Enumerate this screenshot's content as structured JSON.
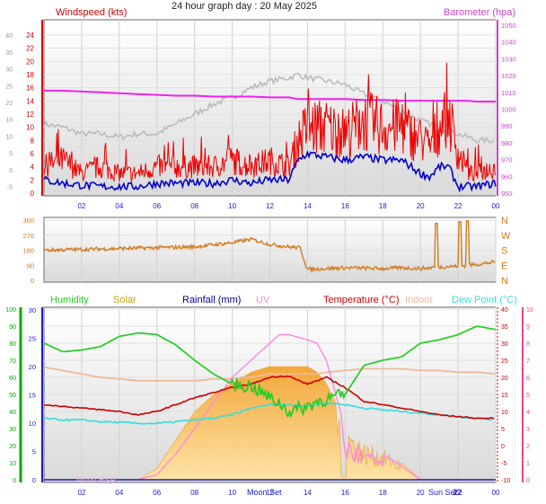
{
  "title": "24 hour graph day : 20 May 2025",
  "colors": {
    "wind": "#ee0000",
    "avgwind": "#0000cc",
    "baro": "#ee22ee",
    "gray": "#b8b8b8",
    "dir": "#d27a1c",
    "humidity": "#22cc22",
    "solar": "#f5b545",
    "rain": "#000099",
    "uv": "#ff88dd",
    "temp": "#cc0000",
    "indoor": "#f0b89a",
    "dew": "#33dddd",
    "axis_left_top": "#cc0000",
    "axis_right_top": "#cc44cc",
    "axis_humidity": "#00aa00",
    "axis_uv": "#ee4488"
  },
  "x_ticks": [
    "02",
    "04",
    "06",
    "08",
    "10",
    "12",
    "14",
    "16",
    "18",
    "20",
    "22",
    "00"
  ],
  "chart_data": [
    {
      "type": "line",
      "name_panel": "wind",
      "labels": {
        "left": "Windspeed (kts)",
        "right": "Barometer (hpa)"
      },
      "y_left_ticks": [
        "0",
        "2",
        "4",
        "6",
        "8",
        "10",
        "12",
        "14",
        "16",
        "18",
        "20",
        "22",
        "24"
      ],
      "y_left2_ticks": [
        "-5",
        "0",
        "5",
        "10",
        "15",
        "20",
        "25",
        "30",
        "35",
        "40"
      ],
      "y_right_ticks": [
        "950",
        "960",
        "970",
        "980",
        "990",
        "1000",
        "1010",
        "1020",
        "1030",
        "1040",
        "1050"
      ],
      "ylim_left": [
        0,
        25.5
      ],
      "ylim_right": [
        950,
        1050
      ],
      "x": [
        0,
        1,
        2,
        3,
        4,
        5,
        6,
        7,
        8,
        9,
        10,
        11,
        12,
        13,
        13.5,
        14,
        15,
        16,
        17,
        18,
        19,
        20,
        20.5,
        21,
        21.5,
        22,
        22.5,
        23,
        24
      ],
      "series": [
        {
          "values": [
            4,
            5,
            3,
            4,
            3,
            3,
            4,
            4,
            4,
            4,
            5,
            4,
            5,
            4,
            8,
            10,
            10,
            9,
            11,
            10,
            10,
            8,
            7,
            10,
            12,
            6,
            3,
            3,
            4
          ]
        },
        {
          "values": [
            2,
            1.5,
            1.2,
            1,
            1,
            1,
            1.5,
            1.5,
            1.5,
            1.5,
            2,
            1.5,
            2,
            2,
            5,
            6,
            5.5,
            5,
            5.5,
            5,
            5,
            3,
            2.5,
            4,
            4,
            1,
            1,
            1,
            1.5
          ]
        },
        {
          "values": [
            1011,
            1011,
            1010.5,
            1010,
            1009.5,
            1009,
            1008.5,
            1008,
            1008,
            1007.5,
            1007.5,
            1007.5,
            1007,
            1007,
            1006,
            1006,
            1006,
            1006,
            1005.5,
            1005.5,
            1005,
            1005,
            1005,
            1005,
            1005,
            1005,
            1005,
            1004.5,
            1004.5
          ]
        },
        {
          "values": [
            10.5,
            10,
            9,
            9,
            8.5,
            9,
            9,
            10.5,
            12,
            13.5,
            14.5,
            16,
            17,
            17.5,
            18,
            17.5,
            17,
            16.5,
            15,
            14,
            12.5,
            11,
            10.5,
            10,
            9.5,
            9,
            8.5,
            8,
            8
          ]
        }
      ]
    },
    {
      "type": "line",
      "name_panel": "direction",
      "y_left_ticks": [
        "0",
        "90",
        "180",
        "270",
        "360"
      ],
      "y_right_ticks": [
        "N",
        "E",
        "S",
        "W",
        "N"
      ],
      "ylim": [
        0,
        360
      ],
      "x": [
        0,
        2,
        4,
        6,
        8,
        10,
        11,
        12,
        13,
        13.6,
        14,
        16,
        18,
        19,
        20,
        21,
        22,
        23,
        24
      ],
      "series": [
        {
          "values": [
            180,
            185,
            190,
            195,
            200,
            225,
            245,
            215,
            200,
            195,
            65,
            75,
            70,
            75,
            70,
            80,
            85,
            95,
            110
          ]
        }
      ]
    },
    {
      "type": "area",
      "name_panel": "temperature",
      "labels": {
        "humidity": "Humidity",
        "solar": "Solar",
        "rain": "Rainfall (mm)",
        "uv": "UV",
        "temp": "Temperature (°C)",
        "indoor": "Indoor",
        "dew": "Dew Point (°C)"
      },
      "y_hum_ticks": [
        "0",
        "10",
        "20",
        "30",
        "40",
        "50",
        "60",
        "70",
        "80",
        "90",
        "100"
      ],
      "y_left_ticks": [
        "0",
        "5",
        "10",
        "15",
        "20",
        "25",
        "30"
      ],
      "y_right_ticks": [
        "-10",
        "-5",
        "0",
        "5",
        "10",
        "15",
        "20",
        "25",
        "30",
        "35",
        "40"
      ],
      "y_uv_ticks": [
        "0",
        "1",
        "2",
        "3",
        "4",
        "5",
        "6",
        "7",
        "8",
        "9",
        "10"
      ],
      "ylim_hum": [
        0,
        100
      ],
      "ylim_temp": [
        -10,
        40
      ],
      "annotations": [
        "Moon Rise",
        "Moon Set",
        "Sun Set",
        "22"
      ],
      "x": [
        0,
        1,
        2,
        3,
        4,
        5,
        6,
        7,
        8,
        9,
        10,
        10.5,
        11,
        12,
        12.5,
        13,
        14,
        14.5,
        15,
        16,
        17,
        18,
        19,
        20,
        21,
        22,
        23,
        24
      ],
      "series": [
        {
          "values": [
            80,
            75,
            76,
            78,
            84,
            86,
            85,
            79,
            70,
            62,
            56,
            55,
            55,
            48,
            45,
            40,
            43,
            46,
            47,
            50,
            67,
            70,
            72,
            80,
            82,
            85,
            90,
            88
          ]
        },
        {
          "values": [
            0,
            0,
            0,
            0,
            0,
            0,
            2,
            7,
            12,
            15,
            17,
            18,
            19,
            20,
            20,
            20,
            20,
            19,
            17,
            10,
            6,
            5,
            3,
            0,
            0,
            0,
            0,
            0
          ]
        },
        {
          "values": [
            0,
            0,
            0,
            0,
            0,
            0,
            0,
            0,
            0,
            0,
            0,
            0,
            0,
            0,
            0,
            0,
            0,
            0,
            0,
            0,
            0,
            0,
            0,
            0,
            0,
            0,
            0,
            0
          ]
        },
        {
          "values": [
            0,
            0,
            0,
            0,
            0,
            0,
            0.3,
            1.5,
            3,
            4.5,
            6,
            6.5,
            7,
            8,
            8.5,
            8.5,
            8.2,
            8,
            7,
            3,
            2,
            1.5,
            0.8,
            0,
            0,
            0,
            0,
            0
          ]
        },
        {
          "values": [
            12,
            11.5,
            11,
            10.5,
            10,
            9,
            10,
            12,
            14,
            15.5,
            17,
            17.5,
            18,
            20,
            20.3,
            20.3,
            18,
            19,
            20,
            17,
            13,
            12,
            11,
            10,
            9,
            8.5,
            8,
            8
          ]
        },
        {
          "values": [
            23,
            22,
            21,
            20,
            19.5,
            19,
            19,
            19,
            19,
            19.5,
            19.5,
            20,
            20,
            21,
            21,
            21,
            21,
            21,
            21.5,
            22,
            22.5,
            22.5,
            22.5,
            22,
            22,
            21.5,
            21.5,
            21
          ]
        },
        {
          "values": [
            8,
            7.5,
            7.5,
            7,
            6.8,
            6.5,
            6.5,
            7,
            7.5,
            8,
            9,
            10,
            11,
            12,
            12,
            12,
            11.5,
            12,
            12.5,
            12,
            11,
            10.5,
            10,
            9.5,
            9,
            8.5,
            8,
            7.5
          ]
        }
      ]
    }
  ]
}
